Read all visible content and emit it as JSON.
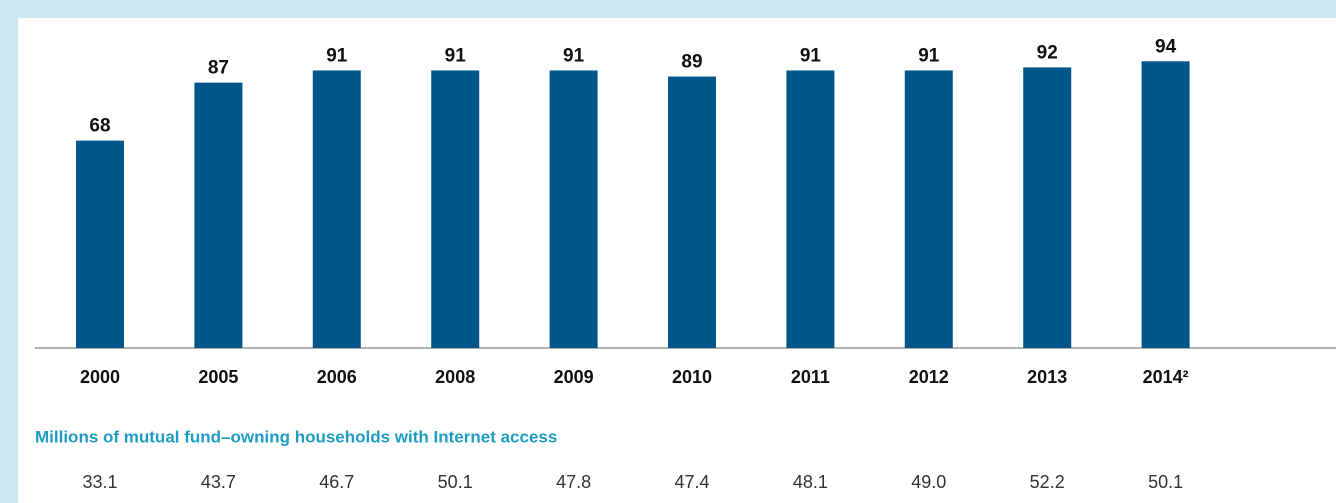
{
  "chart_data": {
    "type": "bar",
    "categories": [
      "2000",
      "2005",
      "2006",
      "2008",
      "2009",
      "2010",
      "2011",
      "2012",
      "2013",
      "2014²"
    ],
    "values": [
      68,
      87,
      91,
      91,
      91,
      89,
      91,
      91,
      92,
      94
    ],
    "color": "#00568a",
    "ylim": [
      0,
      100
    ]
  },
  "table": {
    "title": "Millions of mutual fund–owning households with Internet access",
    "values": [
      "33.1",
      "43.7",
      "46.7",
      "50.1",
      "47.8",
      "47.4",
      "48.1",
      "49.0",
      "52.2",
      "50.1"
    ]
  }
}
